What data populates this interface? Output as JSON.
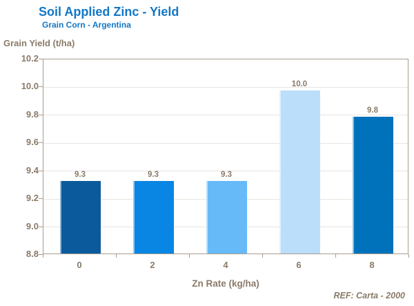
{
  "header": {
    "title": "Soil Applied Zinc - Yield",
    "subtitle": "Grain Corn - Argentina"
  },
  "chart_data": {
    "type": "bar",
    "title": "Soil Applied Zinc - Yield",
    "subtitle": "Grain Corn - Argentina",
    "xlabel": "Zn Rate (kg/ha)",
    "ylabel": "Grain Yield (t/ha)",
    "categories": [
      "0",
      "2",
      "4",
      "6",
      "8"
    ],
    "values": [
      9.32,
      9.32,
      9.32,
      9.97,
      9.78
    ],
    "value_labels": [
      "9.3",
      "9.3",
      "9.3",
      "10.0",
      "9.8"
    ],
    "bar_colors": [
      "#0A5A9C",
      "#0986E3",
      "#66BAF8",
      "#BBDEFB",
      "#0072BC"
    ],
    "ylim": [
      8.8,
      10.2
    ],
    "ytick_step": 0.2,
    "yticks": [
      "10.2",
      "10.0",
      "9.8",
      "9.6",
      "9.4",
      "9.2",
      "9.0",
      "8.8"
    ],
    "grid": true,
    "legend": false
  },
  "footer": {
    "ref": "REF: Carta - 2000"
  },
  "palette": {
    "title_blue": "#1277C6",
    "axis_text_brown": "#8A7A68",
    "axis_line": "#A79C8E",
    "gridline": "#E8E5E1",
    "background": "#FFFFFF"
  }
}
